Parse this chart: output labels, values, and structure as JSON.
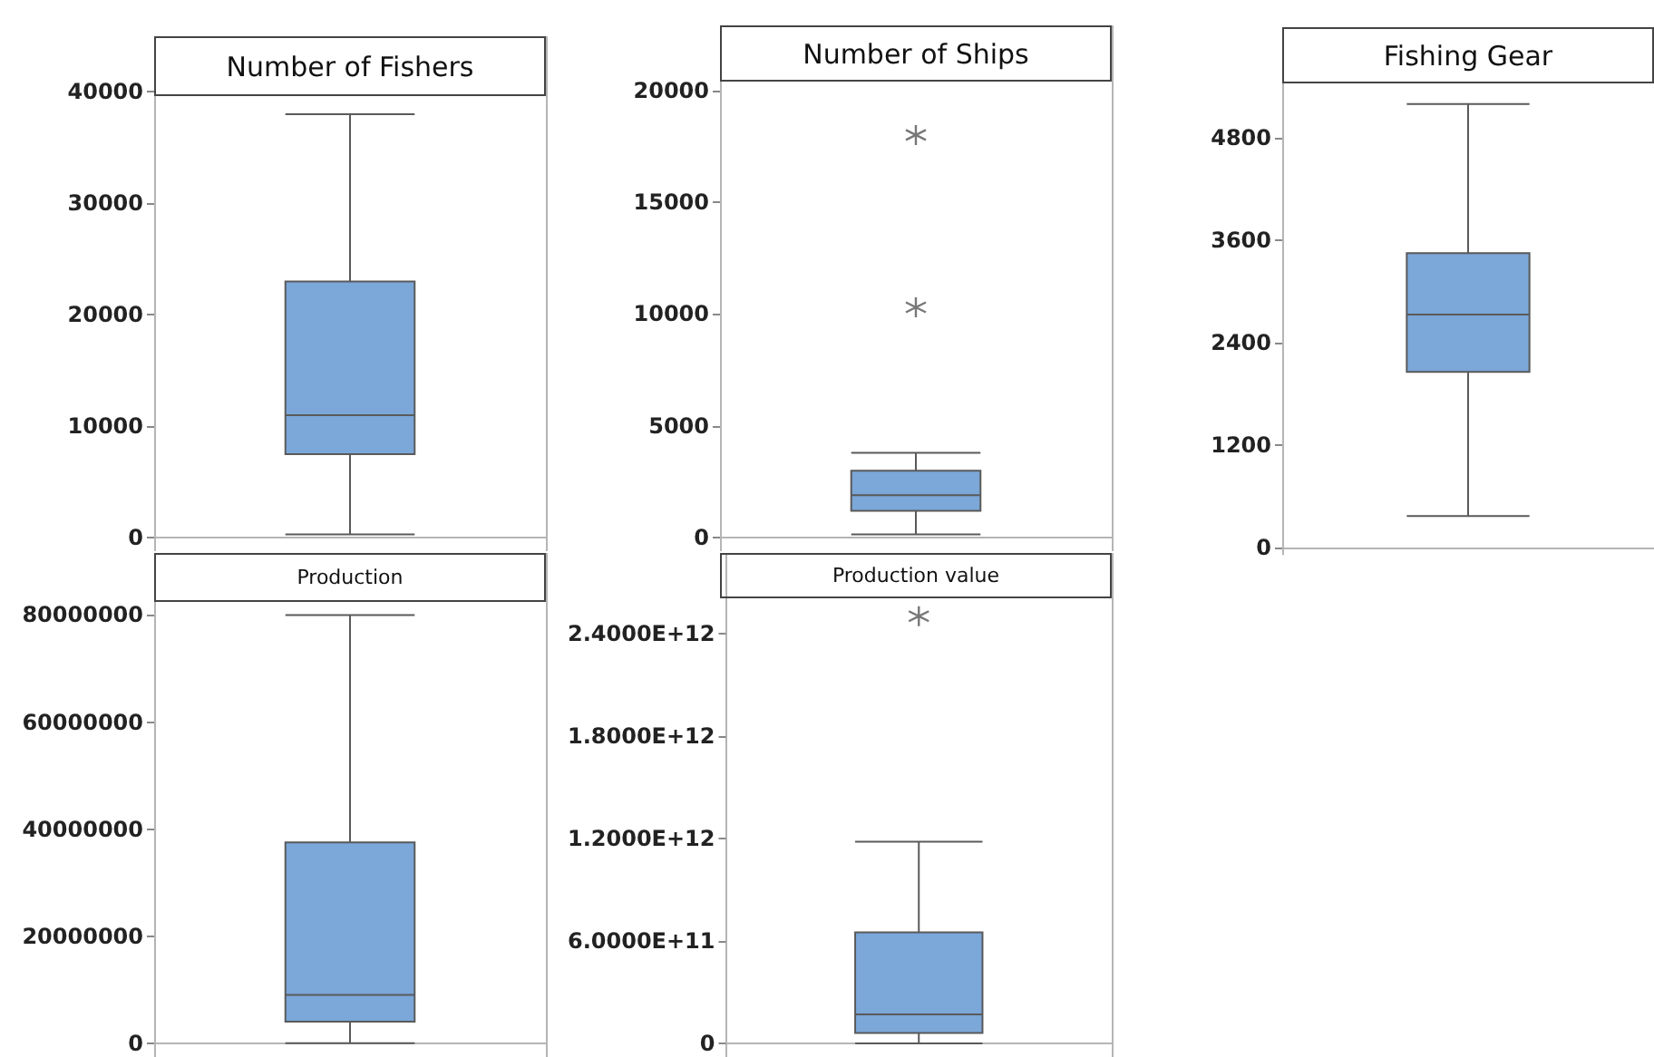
{
  "chart_data": [
    {
      "type": "box",
      "title": "Number of Fishers",
      "categories": [
        null
      ],
      "color": "#7ba7d9",
      "tick_labels": "y",
      "ylim": [
        -1200,
        45000
      ],
      "yticks": [
        0,
        10000,
        20000,
        30000,
        40000
      ],
      "boxes": [
        {
          "low": 300,
          "q1": 7500,
          "median": 11000,
          "q3": 23000,
          "high": 38000
        }
      ]
    },
    {
      "type": "box",
      "title": "Number of Ships",
      "categories": [
        null
      ],
      "color": "#7ba7d9",
      "tick_labels": "y",
      "ylim": [
        -600,
        22900
      ],
      "yticks": [
        0,
        5000,
        10000,
        15000,
        20000
      ],
      "boxes": [
        {
          "low": 150,
          "q1": 1200,
          "median": 1900,
          "q3": 3000,
          "high": 3800,
          "outliers": [
            10300,
            18000
          ]
        }
      ]
    },
    {
      "type": "box",
      "title": "Fishing Gear",
      "categories": [
        null
      ],
      "color": "#7ba7d9",
      "tick_labels": "y",
      "ylim": [
        -80,
        6100
      ],
      "yticks": [
        0,
        1200,
        2400,
        3600,
        4800
      ],
      "boxes": [
        {
          "low": 370,
          "q1": 2060,
          "median": 2730,
          "q3": 3450,
          "high": 5200
        }
      ]
    },
    {
      "type": "box",
      "title": "Production",
      "categories": [
        null
      ],
      "color": "#7ba7d9",
      "tick_labels": "y",
      "ylim": [
        -2600000,
        91600000
      ],
      "yticks": [
        0,
        20000000,
        40000000,
        60000000,
        80000000
      ],
      "boxes": [
        {
          "low": 0,
          "q1": 4000000,
          "median": 9000000,
          "q3": 37500000,
          "high": 80000000
        }
      ]
    },
    {
      "type": "box",
      "title": "Production value",
      "categories": [
        null
      ],
      "color": "#7ba7d9",
      "tick_labels": "y",
      "ylim": [
        -80000000000,
        2870000000000
      ],
      "yticks": [
        0,
        {
          "value": 600000000000,
          "label": "6.0000E+11"
        },
        {
          "value": 1200000000000,
          "label": "1.2000E+12"
        },
        {
          "value": 1800000000000,
          "label": "1.8000E+12"
        },
        {
          "value": 2400000000000,
          "label": "2.4000E+12"
        }
      ],
      "boxes": [
        {
          "low": 0,
          "q1": 60000000000,
          "median": 170000000000,
          "q3": 650000000000,
          "high": 1180000000000,
          "outliers": [
            2500000000000
          ]
        }
      ]
    }
  ]
}
